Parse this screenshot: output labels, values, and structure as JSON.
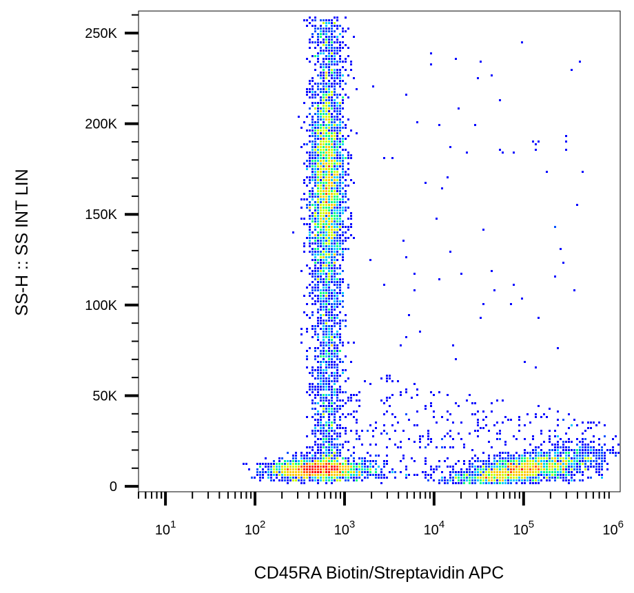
{
  "chart_data": {
    "type": "scatter",
    "style": "density-dot-plot",
    "title": "",
    "xlabel": "CD45RA Biotin/Streptavidin APC",
    "ylabel": "SS-H :: SS INT LIN",
    "x_scale": "log",
    "xlim": [
      5,
      1200000
    ],
    "ylim": [
      -3000,
      262144
    ],
    "x_ticks": [
      {
        "base": "10",
        "exp": "1",
        "value": 10
      },
      {
        "base": "10",
        "exp": "2",
        "value": 100
      },
      {
        "base": "10",
        "exp": "3",
        "value": 1000
      },
      {
        "base": "10",
        "exp": "4",
        "value": 10000
      },
      {
        "base": "10",
        "exp": "5",
        "value": 100000
      },
      {
        "base": "10",
        "exp": "6",
        "value": 1000000
      }
    ],
    "y_ticks": [
      {
        "label": "0",
        "value": 0
      },
      {
        "label": "50K",
        "value": 50000
      },
      {
        "label": "100K",
        "value": 100000
      },
      {
        "label": "150K",
        "value": 150000
      },
      {
        "label": "200K",
        "value": 200000
      },
      {
        "label": "250K",
        "value": 250000
      }
    ],
    "density_colors": [
      "#0000ff",
      "#0050ff",
      "#00c8ff",
      "#00ff80",
      "#c8ff00",
      "#ffc800",
      "#ff5000",
      "#ff0000"
    ],
    "populations": [
      {
        "name": "vertical",
        "x_center": 650,
        "x_log_sd": 0.1,
        "y_range": [
          10000,
          258000
        ],
        "count": 4200
      },
      {
        "name": "neg-bottom",
        "x_center": 500,
        "x_log_sd": 0.2,
        "y_center": 9000,
        "y_sd": 3000,
        "count": 1800
      },
      {
        "name": "pos-bottom",
        "x_center": 100000,
        "x_log_sd": 0.3,
        "y_center": 9000,
        "y_sd": 4000,
        "count": 2000
      },
      {
        "name": "scatter-mid",
        "x_range": [
          1000,
          800000
        ],
        "y_range": [
          5000,
          60000
        ],
        "count": 500
      },
      {
        "name": "scatter-top",
        "x_range": [
          2000,
          500000
        ],
        "y_range": [
          60000,
          250000
        ],
        "count": 70
      }
    ]
  }
}
